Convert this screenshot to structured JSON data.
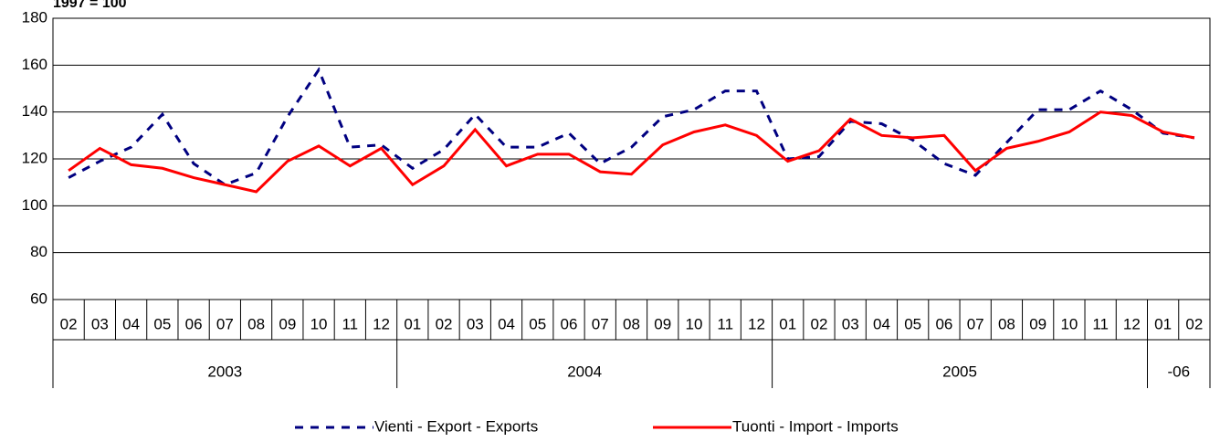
{
  "chart_data": {
    "type": "line",
    "title": "1997 = 100",
    "category_groups": [
      {
        "label": "2003",
        "categories": [
          "02",
          "03",
          "04",
          "05",
          "06",
          "07",
          "08",
          "09",
          "10",
          "11",
          "12"
        ]
      },
      {
        "label": "2004",
        "categories": [
          "01",
          "02",
          "03",
          "04",
          "05",
          "06",
          "07",
          "08",
          "09",
          "10",
          "11",
          "12"
        ]
      },
      {
        "label": "2005",
        "categories": [
          "01",
          "02",
          "03",
          "04",
          "05",
          "06",
          "07",
          "08",
          "09",
          "10",
          "11",
          "12"
        ]
      },
      {
        "label": "-06",
        "categories": [
          "01",
          "02"
        ]
      }
    ],
    "series": [
      {
        "name": "Vienti - Export - Exports",
        "color": "#000080",
        "dashed": true,
        "values": [
          112,
          119,
          125,
          139,
          118,
          109,
          114,
          138,
          158,
          125,
          126,
          116,
          124,
          139,
          125,
          125,
          131,
          118,
          125,
          138,
          141,
          149,
          149,
          120,
          121,
          136,
          135,
          128,
          118,
          113,
          127,
          141,
          141,
          149,
          141,
          131,
          129
        ]
      },
      {
        "name": "Tuonti - Import - Imports",
        "color": "#ff0000",
        "dashed": false,
        "values": [
          115,
          124.5,
          117.5,
          116,
          112,
          109,
          106,
          119,
          125.5,
          117,
          124.5,
          109,
          117,
          132.5,
          117,
          122,
          122,
          114.5,
          113.5,
          126,
          131.5,
          134.5,
          130,
          119,
          123.5,
          137,
          130,
          129,
          130,
          115,
          124.5,
          127.5,
          131.5,
          140,
          138.5,
          131.5,
          129
        ]
      }
    ],
    "ylim": [
      60,
      180
    ],
    "yticks": [
      60,
      80,
      100,
      120,
      140,
      160,
      180
    ],
    "grid": true,
    "legend": "bottom"
  }
}
